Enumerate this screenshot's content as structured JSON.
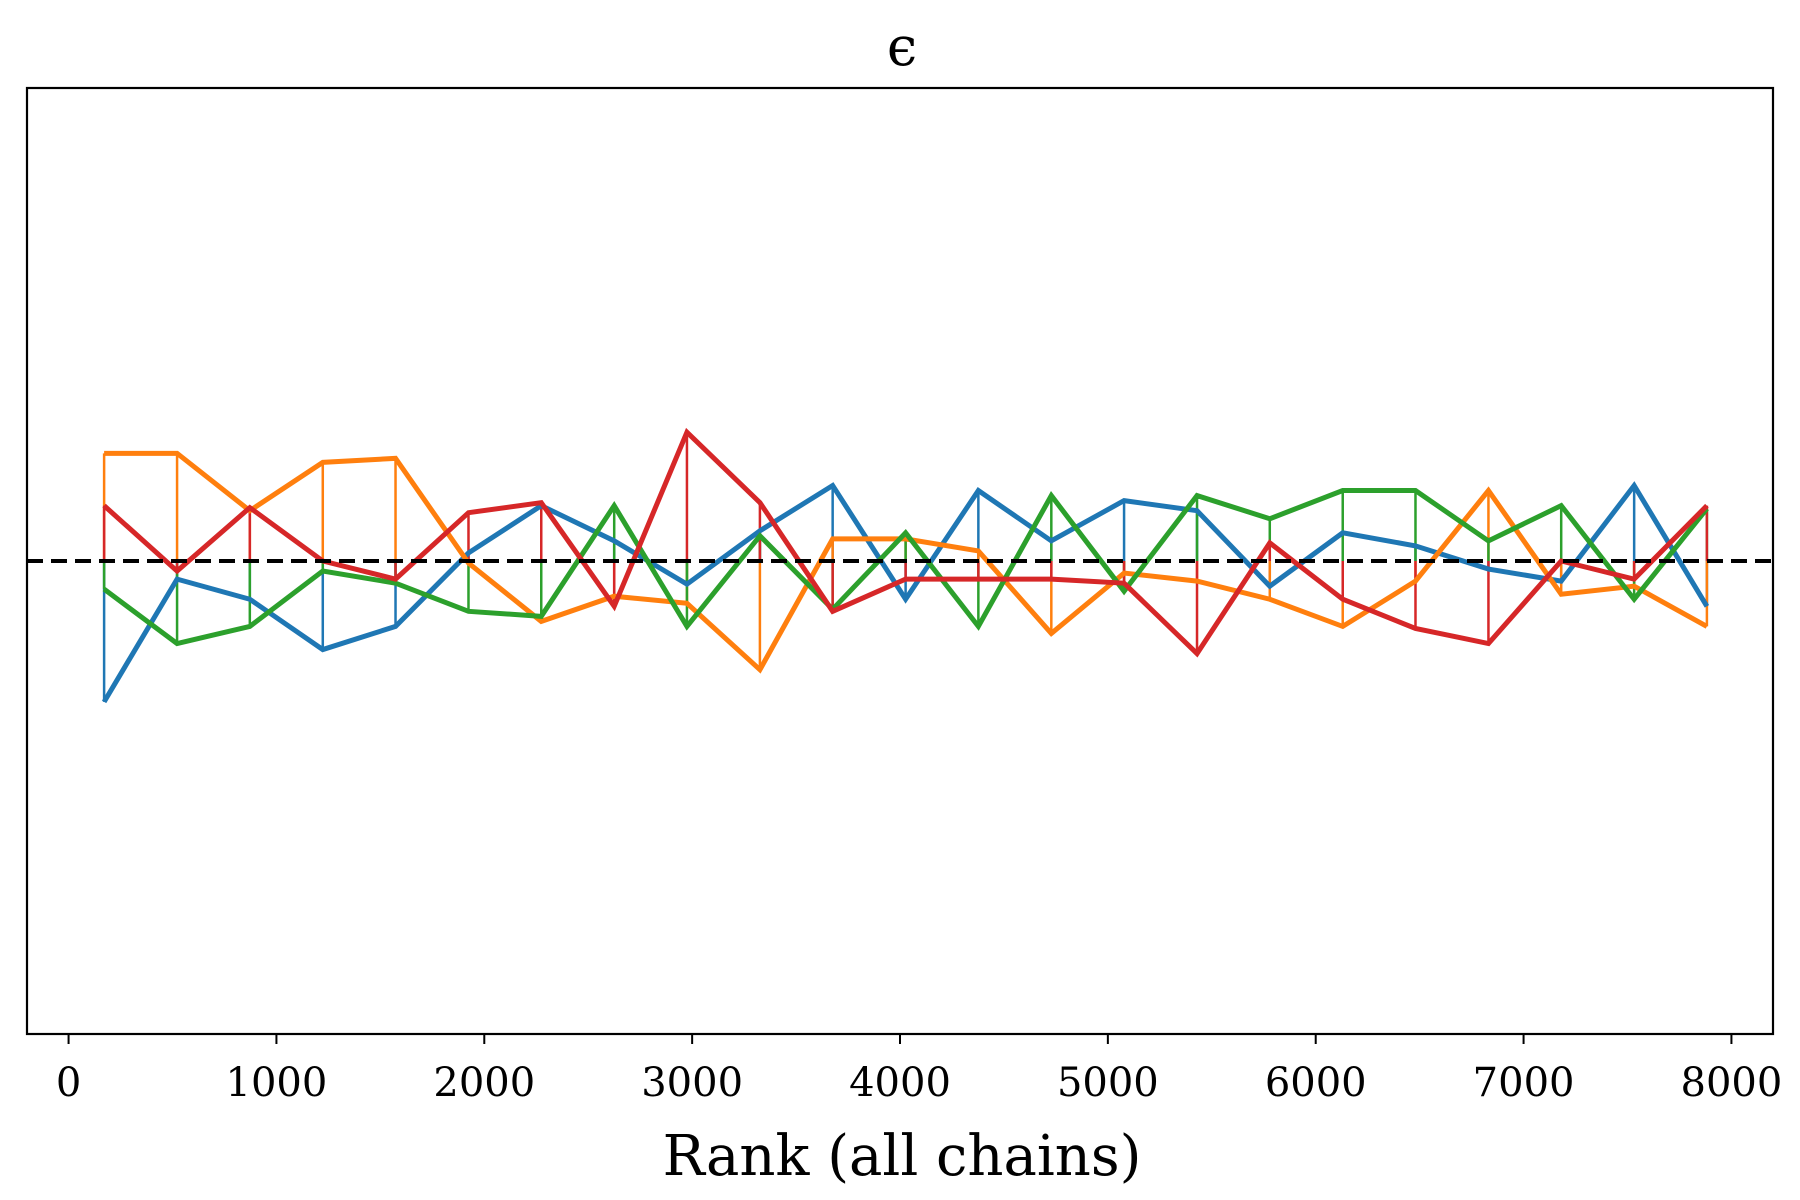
{
  "chart_data": {
    "type": "line",
    "title": "ϵ",
    "xlabel": "Rank (all chains)",
    "ylabel": "",
    "xlim": [
      -200,
      8200
    ],
    "ylim": [
      -4.7,
      4.7
    ],
    "xticks": [
      0,
      1000,
      2000,
      3000,
      4000,
      5000,
      6000,
      7000,
      8000
    ],
    "yticks_visible": false,
    "grid": false,
    "legend": "none",
    "reference_line": {
      "y": 0,
      "style": "dashed",
      "color": "#000000"
    },
    "x": [
      171,
      522,
      872,
      1223,
      1573,
      1924,
      2274,
      2625,
      2975,
      3326,
      3676,
      4027,
      4377,
      4728,
      5078,
      5429,
      5779,
      6130,
      6480,
      6831,
      7181,
      7532,
      7882
    ],
    "series": [
      {
        "color": "#1f77b4",
        "values": [
          -1.4,
          -0.18,
          -0.38,
          -0.88,
          -0.65,
          0.08,
          0.55,
          0.2,
          -0.23,
          0.3,
          0.75,
          -0.38,
          0.7,
          0.2,
          0.6,
          0.5,
          -0.25,
          0.28,
          0.15,
          -0.08,
          -0.2,
          0.75,
          -0.45
        ]
      },
      {
        "color": "#ff7f0e",
        "values": [
          1.07,
          1.07,
          0.5,
          0.98,
          1.02,
          -0.02,
          -0.6,
          -0.35,
          -0.42,
          -1.08,
          0.22,
          0.22,
          0.1,
          -0.72,
          -0.12,
          -0.2,
          -0.38,
          -0.65,
          -0.2,
          0.7,
          -0.33,
          -0.25,
          -0.65
        ]
      },
      {
        "color": "#2ca02c",
        "values": [
          -0.28,
          -0.82,
          -0.65,
          -0.1,
          -0.22,
          -0.5,
          -0.55,
          0.55,
          -0.65,
          0.25,
          -0.48,
          0.28,
          -0.65,
          0.65,
          -0.3,
          0.65,
          0.42,
          0.7,
          0.7,
          0.2,
          0.55,
          -0.38,
          0.52
        ]
      },
      {
        "color": "#d62728",
        "values": [
          0.55,
          -0.1,
          0.53,
          0.0,
          -0.18,
          0.48,
          0.58,
          -0.45,
          1.28,
          0.58,
          -0.5,
          -0.18,
          -0.18,
          -0.18,
          -0.22,
          -0.92,
          0.18,
          -0.38,
          -0.67,
          -0.82,
          0.0,
          -0.18,
          0.55
        ]
      }
    ]
  }
}
